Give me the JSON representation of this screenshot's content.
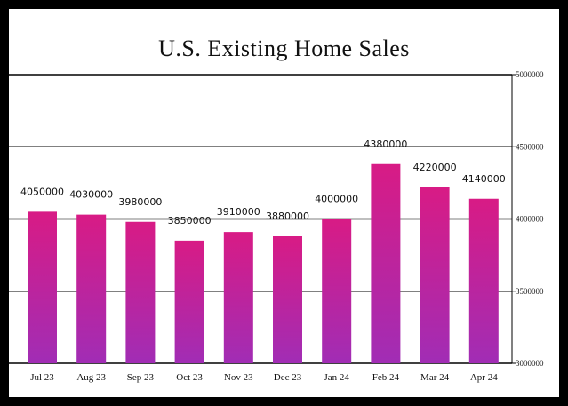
{
  "chart_data": {
    "type": "bar",
    "title": "U.S. Existing Home Sales",
    "categories": [
      "Jul 23",
      "Aug 23",
      "Sep 23",
      "Oct 23",
      "Nov 23",
      "Dec 23",
      "Jan 24",
      "Feb 24",
      "Mar 24",
      "Apr 24"
    ],
    "values": [
      4050000,
      4030000,
      3980000,
      3850000,
      3910000,
      3880000,
      4000000,
      4380000,
      4220000,
      4140000
    ],
    "y_ticks": [
      "3000000",
      "3500000",
      "4000000",
      "4500000",
      "5000000"
    ],
    "ylim": [
      3000000,
      5000000
    ],
    "y_axis_side": "right",
    "grid": true,
    "xlabel": "",
    "ylabel": ""
  },
  "colors": {
    "bar_top": "#d81b85",
    "bar_bottom": "#a12db5",
    "gridline": "#000000",
    "frame_border": "#000000"
  }
}
